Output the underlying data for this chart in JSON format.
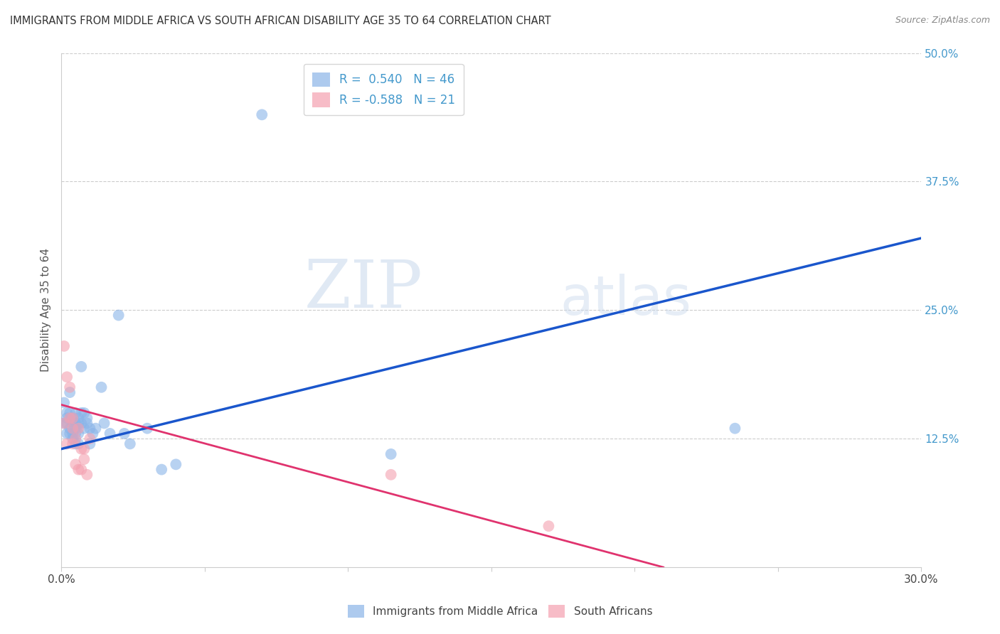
{
  "title": "IMMIGRANTS FROM MIDDLE AFRICA VS SOUTH AFRICAN DISABILITY AGE 35 TO 64 CORRELATION CHART",
  "source": "Source: ZipAtlas.com",
  "ylabel": "Disability Age 35 to 64",
  "x_min": 0.0,
  "x_max": 0.3,
  "y_min": 0.0,
  "y_max": 0.5,
  "x_ticks": [
    0.0,
    0.05,
    0.1,
    0.15,
    0.2,
    0.25,
    0.3
  ],
  "y_ticks_right": [
    0.125,
    0.25,
    0.375,
    0.5
  ],
  "y_tick_labels_right": [
    "12.5%",
    "25.0%",
    "37.5%",
    "50.0%"
  ],
  "grid_color": "#cccccc",
  "background_color": "#ffffff",
  "blue_color": "#8ab4e8",
  "pink_color": "#f4a0b0",
  "line_blue_color": "#1a56cc",
  "line_pink_color": "#e0336e",
  "legend_r_blue": "0.540",
  "legend_n_blue": "46",
  "legend_r_pink": "-0.588",
  "legend_n_pink": "21",
  "legend_label_blue": "Immigrants from Middle Africa",
  "legend_label_pink": "South Africans",
  "blue_line_x": [
    0.0,
    0.3
  ],
  "blue_line_y": [
    0.115,
    0.32
  ],
  "pink_line_x": [
    0.0,
    0.21
  ],
  "pink_line_y": [
    0.158,
    0.0
  ],
  "blue_scatter_x": [
    0.001,
    0.001,
    0.002,
    0.002,
    0.002,
    0.002,
    0.003,
    0.003,
    0.003,
    0.003,
    0.004,
    0.004,
    0.004,
    0.004,
    0.005,
    0.005,
    0.005,
    0.005,
    0.005,
    0.006,
    0.006,
    0.006,
    0.006,
    0.007,
    0.007,
    0.007,
    0.008,
    0.008,
    0.009,
    0.009,
    0.01,
    0.01,
    0.011,
    0.012,
    0.014,
    0.015,
    0.017,
    0.02,
    0.022,
    0.024,
    0.03,
    0.035,
    0.04,
    0.07,
    0.115,
    0.235
  ],
  "blue_scatter_y": [
    0.14,
    0.16,
    0.13,
    0.15,
    0.14,
    0.145,
    0.17,
    0.15,
    0.135,
    0.13,
    0.145,
    0.14,
    0.13,
    0.125,
    0.15,
    0.14,
    0.135,
    0.13,
    0.12,
    0.145,
    0.14,
    0.13,
    0.12,
    0.195,
    0.15,
    0.14,
    0.15,
    0.135,
    0.145,
    0.14,
    0.135,
    0.12,
    0.13,
    0.135,
    0.175,
    0.14,
    0.13,
    0.245,
    0.13,
    0.12,
    0.135,
    0.095,
    0.1,
    0.44,
    0.11,
    0.135
  ],
  "pink_scatter_x": [
    0.001,
    0.001,
    0.002,
    0.002,
    0.003,
    0.003,
    0.004,
    0.004,
    0.004,
    0.005,
    0.005,
    0.006,
    0.006,
    0.007,
    0.007,
    0.008,
    0.008,
    0.009,
    0.01,
    0.115,
    0.17
  ],
  "pink_scatter_y": [
    0.14,
    0.215,
    0.12,
    0.185,
    0.145,
    0.175,
    0.135,
    0.145,
    0.12,
    0.125,
    0.1,
    0.095,
    0.135,
    0.115,
    0.095,
    0.115,
    0.105,
    0.09,
    0.125,
    0.09,
    0.04
  ]
}
